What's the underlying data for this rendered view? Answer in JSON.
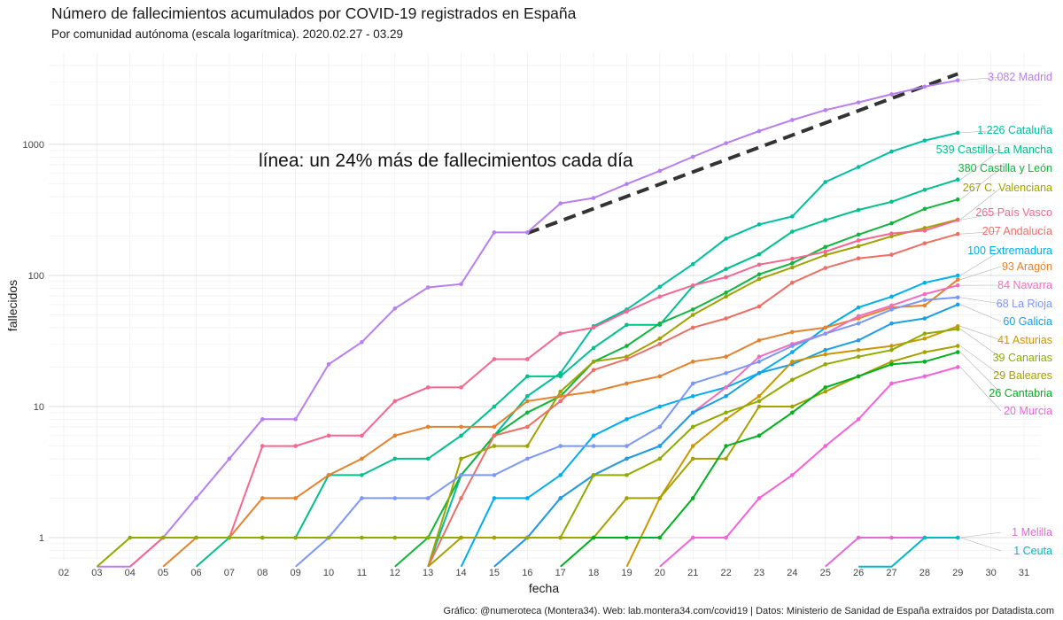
{
  "title": "Número de fallecimientos acumulados por COVID-19 registrados en España",
  "subtitle": "Por comunidad autónoma (escala logarítmica). 2020.02.27 - 03.29",
  "caption": "Gráfico: @numeroteca (Montera34). Web: lab.montera34.com/covid19 | Datos: Ministerio de Sanidad de España extraídos por Datadista.com",
  "chart_data": {
    "type": "line",
    "y_scale": "log",
    "xlabel": "fecha",
    "ylabel": "fallecidos",
    "x_ticks": [
      "02",
      "03",
      "04",
      "05",
      "06",
      "07",
      "08",
      "09",
      "10",
      "11",
      "12",
      "13",
      "14",
      "15",
      "16",
      "17",
      "18",
      "19",
      "20",
      "21",
      "22",
      "23",
      "24",
      "25",
      "26",
      "27",
      "28",
      "29",
      "30",
      "31"
    ],
    "y_ticks": [
      {
        "value": 1,
        "label": "1"
      },
      {
        "value": 10,
        "label": "10"
      },
      {
        "value": 100,
        "label": "100"
      },
      {
        "value": 1000,
        "label": "1000"
      }
    ],
    "ylim": [
      0.6,
      4200
    ],
    "grid": true,
    "annotation": {
      "text": "línea: un 24% más de fallecimientos cada día",
      "x": 16.3,
      "y": 880
    },
    "reference_line": {
      "style": "dashed",
      "color": "#333333",
      "x": [
        16,
        29
      ],
      "y": [
        210,
        3450
      ]
    },
    "series": [
      {
        "name": "Madrid",
        "label": "3.082 Madrid",
        "color": "#b77ff0",
        "x": [
          3,
          4,
          5,
          6,
          7,
          8,
          9,
          10,
          11,
          12,
          13,
          14,
          15,
          16,
          17,
          18,
          19,
          20,
          21,
          22,
          23,
          24,
          25,
          26,
          27,
          28,
          29
        ],
        "values": [
          0.6,
          0.6,
          1,
          2,
          4,
          8,
          8,
          21,
          31,
          56,
          81,
          86,
          213,
          213,
          355,
          390,
          498,
          628,
          804,
          1021,
          1263,
          1535,
          1825,
          2090,
          2412,
          2757,
          3082
        ]
      },
      {
        "name": "Cataluña",
        "label": "1.226 Cataluña",
        "color": "#00bfa0",
        "x": [
          13,
          14,
          15,
          16,
          17,
          18,
          19,
          20,
          21,
          22,
          23,
          24,
          25,
          26,
          27,
          28,
          29
        ],
        "values": [
          0.6,
          3,
          6,
          12,
          18,
          41,
          55,
          82,
          122,
          191,
          245,
          282,
          516,
          672,
          882,
          1070,
          1226
        ]
      },
      {
        "name": "Castilla-La Mancha",
        "label": "539 Castilla-La Mancha",
        "color": "#00c08b",
        "x": [
          6,
          7,
          8,
          9,
          10,
          11,
          12,
          13,
          14,
          15,
          16,
          17,
          18,
          19,
          20,
          21,
          22,
          23,
          24,
          25,
          26,
          27,
          28,
          29
        ],
        "values": [
          0.6,
          1,
          1,
          1,
          3,
          3,
          4,
          4,
          6,
          10,
          17,
          17,
          28,
          42,
          42,
          83,
          112,
          145,
          216,
          264,
          316,
          365,
          450,
          539
        ]
      },
      {
        "name": "Castilla y León",
        "label": "380 Castilla y León",
        "color": "#0fb53d",
        "x": [
          12,
          13,
          14,
          15,
          16,
          17,
          18,
          19,
          20,
          21,
          22,
          23,
          24,
          25,
          26,
          27,
          28,
          29
        ],
        "values": [
          0.6,
          1,
          3,
          6,
          9,
          12,
          22,
          29,
          43,
          55,
          74,
          102,
          124,
          165,
          205,
          250,
          322,
          380
        ]
      },
      {
        "name": "C. Valenciana",
        "label": "267 C. Valenciana",
        "color": "#9fa300",
        "x": [
          13,
          14,
          15,
          16,
          17,
          18,
          19,
          20,
          21,
          22,
          23,
          24,
          25,
          26,
          27,
          28,
          29
        ],
        "values": [
          0.6,
          4,
          5,
          5,
          13,
          22,
          24,
          33,
          50,
          69,
          94,
          115,
          143,
          167,
          199,
          230,
          267
        ]
      },
      {
        "name": "País Vasco",
        "label": "265 País Vasco",
        "color": "#f5678f",
        "x": [
          4,
          5,
          6,
          7,
          8,
          9,
          10,
          11,
          12,
          13,
          14,
          15,
          16,
          17,
          18,
          19,
          20,
          21,
          22,
          23,
          24,
          25,
          26,
          27,
          28,
          29
        ],
        "values": [
          0.6,
          1,
          1,
          1,
          5,
          5,
          6,
          6,
          11,
          14,
          14,
          23,
          23,
          36,
          40,
          53,
          69,
          84,
          97,
          121,
          134,
          152,
          185,
          209,
          220,
          265
        ]
      },
      {
        "name": "Andalucía",
        "label": "207 Andalucía",
        "color": "#ed6e64",
        "x": [
          13,
          14,
          15,
          16,
          17,
          18,
          19,
          20,
          21,
          22,
          23,
          24,
          25,
          26,
          27,
          28,
          29
        ],
        "values": [
          0.6,
          2,
          6,
          7,
          11,
          19,
          23,
          30,
          40,
          47,
          58,
          88,
          114,
          135,
          144,
          176,
          207
        ]
      },
      {
        "name": "Extremadura",
        "label": "100 Extremadura",
        "color": "#00aeef",
        "x": [
          14,
          15,
          16,
          17,
          18,
          19,
          20,
          21,
          22,
          23,
          24,
          25,
          26,
          27,
          28,
          29
        ],
        "values": [
          0.6,
          2,
          2,
          3,
          6,
          8,
          10,
          12,
          14,
          18,
          26,
          40,
          57,
          69,
          88,
          100
        ]
      },
      {
        "name": "Aragón",
        "label": "93 Aragón",
        "color": "#e5822f",
        "x": [
          5,
          6,
          7,
          8,
          9,
          10,
          11,
          12,
          13,
          14,
          15,
          16,
          17,
          18,
          19,
          20,
          21,
          22,
          23,
          24,
          25,
          26,
          27,
          28,
          29
        ],
        "values": [
          0.6,
          1,
          1,
          2,
          2,
          3,
          4,
          6,
          7,
          7,
          7,
          11,
          12,
          13,
          15,
          17,
          22,
          24,
          32,
          37,
          40,
          47,
          57,
          59,
          93
        ]
      },
      {
        "name": "Navarra",
        "label": "84 Navarra",
        "color": "#f26dbd",
        "x": [
          15,
          16,
          17,
          18,
          19,
          20,
          21,
          22,
          23,
          24,
          25,
          26,
          27,
          28,
          29
        ],
        "values": [
          0.6,
          1,
          2,
          3,
          4,
          5,
          9,
          14,
          24,
          30,
          36,
          49,
          59,
          72,
          84
        ]
      },
      {
        "name": "La Rioja",
        "label": "68 La Rioja",
        "color": "#7c97f5",
        "x": [
          9,
          10,
          11,
          12,
          13,
          14,
          15,
          16,
          17,
          18,
          19,
          20,
          21,
          22,
          23,
          24,
          25,
          26,
          27,
          28,
          29
        ],
        "values": [
          0.6,
          1,
          2,
          2,
          2,
          3,
          3,
          4,
          5,
          5,
          5,
          7,
          15,
          18,
          22,
          29,
          36,
          43,
          55,
          65,
          68
        ]
      },
      {
        "name": "Galicia",
        "label": "60 Galicia",
        "color": "#1a9ee6",
        "x": [
          15,
          16,
          17,
          18,
          19,
          20,
          21,
          22,
          23,
          24,
          25,
          26,
          27,
          28,
          29
        ],
        "values": [
          0.6,
          1,
          2,
          3,
          4,
          5,
          9,
          12,
          18,
          21,
          27,
          32,
          43,
          47,
          60
        ]
      },
      {
        "name": "Asturias",
        "label": "41 Asturias",
        "color": "#c99800",
        "x": [
          19,
          20,
          21,
          22,
          23,
          24,
          25,
          26,
          27,
          28,
          29
        ],
        "values": [
          0.6,
          2,
          5,
          8,
          12,
          22,
          25,
          27,
          29,
          33,
          41
        ]
      },
      {
        "name": "Canarias",
        "label": "39 Canarias",
        "color": "#8fab00",
        "x": [
          3,
          4,
          5,
          6,
          7,
          8,
          9,
          10,
          11,
          12,
          13,
          14,
          15,
          16,
          17,
          18,
          19,
          20,
          21,
          22,
          23,
          24,
          25,
          26,
          27,
          28,
          29
        ],
        "values": [
          0.6,
          1,
          1,
          1,
          1,
          1,
          1,
          1,
          1,
          1,
          1,
          1,
          1,
          1,
          1,
          3,
          3,
          4,
          7,
          9,
          11,
          16,
          21,
          24,
          27,
          36,
          39
        ]
      },
      {
        "name": "Baleares",
        "label": "29 Baleares",
        "color": "#a6a000",
        "x": [
          13,
          14,
          15,
          16,
          17,
          18,
          19,
          20,
          21,
          22,
          23,
          24,
          25,
          26,
          27,
          28,
          29
        ],
        "values": [
          0.6,
          1,
          1,
          1,
          1,
          1,
          2,
          2,
          4,
          4,
          10,
          10,
          13,
          17,
          22,
          26,
          29
        ]
      },
      {
        "name": "Cantabria",
        "label": "26 Cantabria",
        "color": "#00b020",
        "x": [
          17,
          18,
          19,
          20,
          21,
          22,
          23,
          24,
          25,
          26,
          27,
          28,
          29
        ],
        "values": [
          0.6,
          1,
          1,
          1,
          2,
          5,
          6,
          9,
          14,
          17,
          21,
          22,
          26
        ]
      },
      {
        "name": "Murcia",
        "label": "20 Murcia",
        "color": "#f562d8",
        "x": [
          20,
          21,
          22,
          23,
          24,
          25,
          26,
          27,
          28,
          29
        ],
        "values": [
          0.6,
          1,
          1,
          2,
          3,
          5,
          8,
          15,
          17,
          20
        ]
      },
      {
        "name": "Melilla",
        "label": "1 Melilla",
        "color": "#e16bd2",
        "x": [
          25,
          26,
          27,
          28,
          29
        ],
        "values": [
          0.6,
          1,
          1,
          1,
          1
        ]
      },
      {
        "name": "Ceuta",
        "label": "1 Ceuta",
        "color": "#00b8c8",
        "x": [
          26,
          27,
          28,
          29
        ],
        "values": [
          0.6,
          0.6,
          1,
          1
        ]
      }
    ]
  }
}
